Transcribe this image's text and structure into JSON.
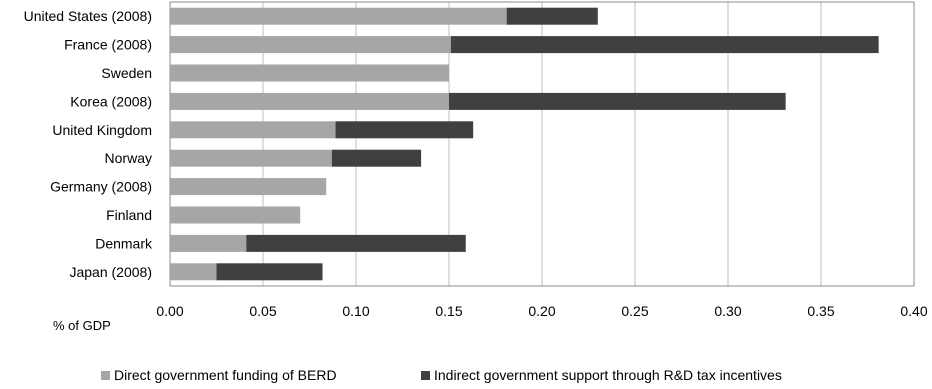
{
  "chart_data": {
    "type": "bar",
    "orientation": "horizontal",
    "stacked": true,
    "categories": [
      "United States (2008)",
      "France (2008)",
      "Sweden",
      "Korea (2008)",
      "United Kingdom",
      "Norway",
      "Germany (2008)",
      "Finland",
      "Denmark",
      "Japan (2008)"
    ],
    "series": [
      {
        "name": "Direct government funding of BERD",
        "color": "#a6a6a6",
        "values": [
          0.181,
          0.151,
          0.15,
          0.15,
          0.089,
          0.087,
          0.084,
          0.07,
          0.041,
          0.025
        ]
      },
      {
        "name": "Indirect government support through R&D tax incentives",
        "color": "#404040",
        "values": [
          0.049,
          0.23,
          0.0,
          0.181,
          0.074,
          0.048,
          0.0,
          0.0,
          0.118,
          0.057
        ]
      }
    ],
    "xticks": [
      "0.00",
      "0.05",
      "0.10",
      "0.15",
      "0.20",
      "0.25",
      "0.30",
      "0.35",
      "0.40"
    ],
    "xlim": [
      0,
      0.4
    ],
    "xunit": "% of GDP",
    "grid": true,
    "legend_position": "bottom"
  }
}
